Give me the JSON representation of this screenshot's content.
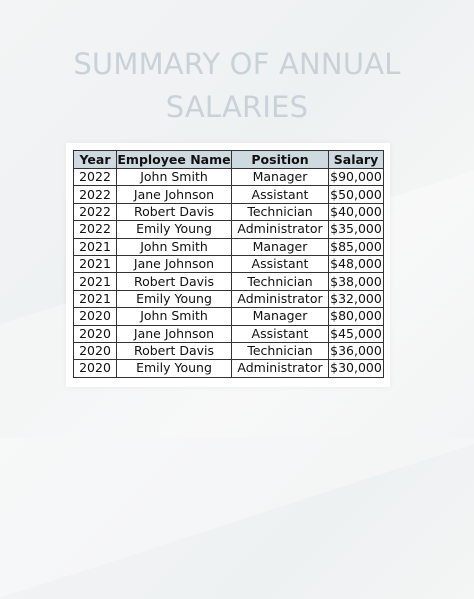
{
  "title": {
    "line1": "SUMMARY OF ANNUAL",
    "line2": "SALARIES"
  },
  "table": {
    "headers": [
      "Year",
      "Employee Name",
      "Position",
      "Salary"
    ],
    "rows": [
      [
        "2022",
        "John Smith",
        "Manager",
        "$90,000"
      ],
      [
        "2022",
        "Jane Johnson",
        "Assistant",
        "$50,000"
      ],
      [
        "2022",
        "Robert Davis",
        "Technician",
        "$40,000"
      ],
      [
        "2022",
        "Emily Young",
        "Administrator",
        "$35,000"
      ],
      [
        "2021",
        "John Smith",
        "Manager",
        "$85,000"
      ],
      [
        "2021",
        "Jane Johnson",
        "Assistant",
        "$48,000"
      ],
      [
        "2021",
        "Robert Davis",
        "Technician",
        "$38,000"
      ],
      [
        "2021",
        "Emily Young",
        "Administrator",
        "$32,000"
      ],
      [
        "2020",
        "John Smith",
        "Manager",
        "$80,000"
      ],
      [
        "2020",
        "Jane Johnson",
        "Assistant",
        "$45,000"
      ],
      [
        "2020",
        "Robert Davis",
        "Technician",
        "$36,000"
      ],
      [
        "2020",
        "Emily Young",
        "Administrator",
        "$30,000"
      ]
    ]
  },
  "colors": {
    "title": "#c9d2d8",
    "header_bg": "#cfd9e0",
    "border": "#333333"
  }
}
